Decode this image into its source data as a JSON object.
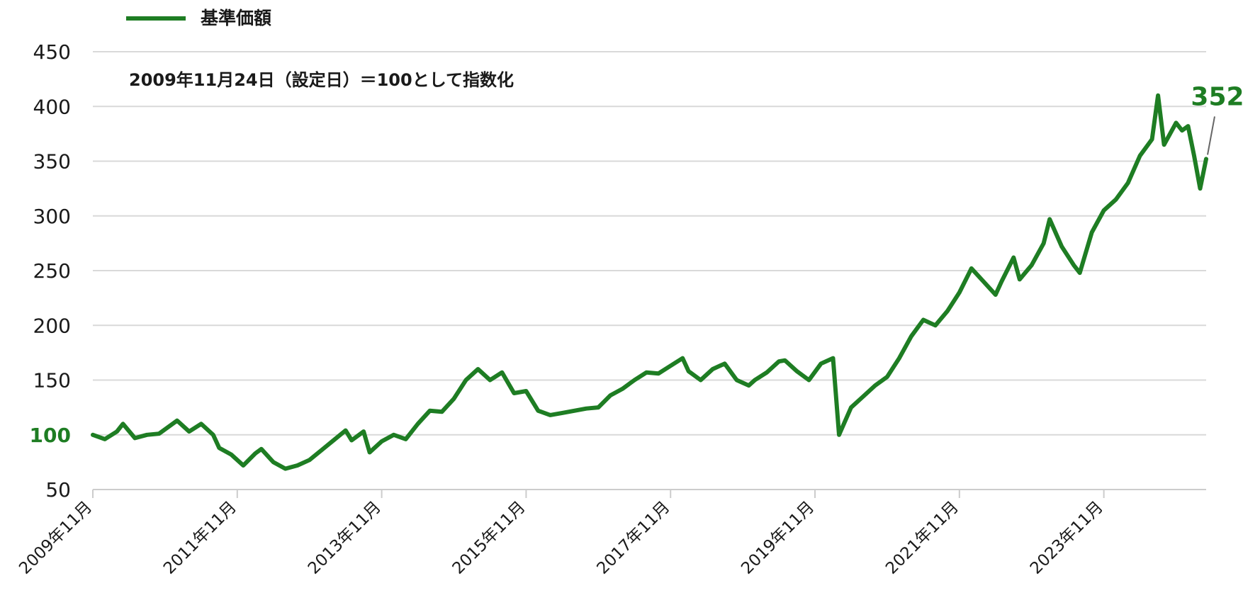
{
  "colors": {
    "series": "#1e7d23",
    "grid": "#d9d9d9",
    "axis": "#cccccc",
    "text": "#1a1a1a",
    "leader": "#666666"
  },
  "legend": {
    "label": "基準価額",
    "placement": "top-left"
  },
  "annotations": {
    "note": "2009年11月24日（設定日）＝100として指数化",
    "end_value_label": "352"
  },
  "chart_data": {
    "type": "line",
    "xlabel": "",
    "ylabel": "",
    "ylim": [
      50,
      450
    ],
    "yticks": [
      50,
      100,
      150,
      200,
      250,
      300,
      350,
      400,
      450
    ],
    "highlight_ytick": 100,
    "grid": true,
    "xlim": [
      "2009-11",
      "2025-04"
    ],
    "xticks": [
      {
        "date": "2009-11",
        "label": "2009年11月"
      },
      {
        "date": "2011-11",
        "label": "2011年11月"
      },
      {
        "date": "2013-11",
        "label": "2013年11月"
      },
      {
        "date": "2015-11",
        "label": "2015年11月"
      },
      {
        "date": "2017-11",
        "label": "2017年11月"
      },
      {
        "date": "2019-11",
        "label": "2019年11月"
      },
      {
        "date": "2021-11",
        "label": "2021年11月"
      },
      {
        "date": "2023-11",
        "label": "2023年11月"
      }
    ],
    "series": [
      {
        "name": "基準価額",
        "points": [
          [
            "2009-11",
            100
          ],
          [
            "2010-01",
            96
          ],
          [
            "2010-03",
            103
          ],
          [
            "2010-04",
            110
          ],
          [
            "2010-06",
            97
          ],
          [
            "2010-08",
            100
          ],
          [
            "2010-10",
            101
          ],
          [
            "2011-01",
            113
          ],
          [
            "2011-03",
            103
          ],
          [
            "2011-05",
            110
          ],
          [
            "2011-07",
            100
          ],
          [
            "2011-08",
            88
          ],
          [
            "2011-10",
            82
          ],
          [
            "2011-12",
            72
          ],
          [
            "2012-02",
            83
          ],
          [
            "2012-03",
            87
          ],
          [
            "2012-05",
            75
          ],
          [
            "2012-07",
            69
          ],
          [
            "2012-09",
            72
          ],
          [
            "2012-11",
            77
          ],
          [
            "2013-01",
            86
          ],
          [
            "2013-03",
            95
          ],
          [
            "2013-05",
            104
          ],
          [
            "2013-06",
            95
          ],
          [
            "2013-08",
            103
          ],
          [
            "2013-09",
            84
          ],
          [
            "2013-11",
            94
          ],
          [
            "2014-01",
            100
          ],
          [
            "2014-03",
            96
          ],
          [
            "2014-05",
            110
          ],
          [
            "2014-07",
            122
          ],
          [
            "2014-09",
            121
          ],
          [
            "2014-11",
            133
          ],
          [
            "2015-01",
            150
          ],
          [
            "2015-03",
            160
          ],
          [
            "2015-05",
            150
          ],
          [
            "2015-07",
            157
          ],
          [
            "2015-09",
            138
          ],
          [
            "2015-11",
            140
          ],
          [
            "2016-01",
            122
          ],
          [
            "2016-03",
            118
          ],
          [
            "2016-05",
            120
          ],
          [
            "2016-07",
            122
          ],
          [
            "2016-09",
            124
          ],
          [
            "2016-11",
            125
          ],
          [
            "2017-01",
            136
          ],
          [
            "2017-03",
            142
          ],
          [
            "2017-05",
            150
          ],
          [
            "2017-07",
            157
          ],
          [
            "2017-09",
            156
          ],
          [
            "2017-11",
            163
          ],
          [
            "2018-01",
            170
          ],
          [
            "2018-02",
            158
          ],
          [
            "2018-04",
            150
          ],
          [
            "2018-06",
            160
          ],
          [
            "2018-08",
            165
          ],
          [
            "2018-10",
            150
          ],
          [
            "2018-12",
            145
          ],
          [
            "2019-01",
            150
          ],
          [
            "2019-03",
            157
          ],
          [
            "2019-05",
            167
          ],
          [
            "2019-06",
            168
          ],
          [
            "2019-08",
            158
          ],
          [
            "2019-10",
            150
          ],
          [
            "2019-12",
            165
          ],
          [
            "2020-02",
            170
          ],
          [
            "2020-03",
            100
          ],
          [
            "2020-05",
            125
          ],
          [
            "2020-07",
            135
          ],
          [
            "2020-09",
            145
          ],
          [
            "2020-11",
            153
          ],
          [
            "2021-01",
            170
          ],
          [
            "2021-03",
            190
          ],
          [
            "2021-05",
            205
          ],
          [
            "2021-07",
            200
          ],
          [
            "2021-09",
            213
          ],
          [
            "2021-11",
            230
          ],
          [
            "2022-01",
            252
          ],
          [
            "2022-03",
            240
          ],
          [
            "2022-05",
            228
          ],
          [
            "2022-06",
            240
          ],
          [
            "2022-08",
            262
          ],
          [
            "2022-09",
            242
          ],
          [
            "2022-11",
            255
          ],
          [
            "2023-01",
            275
          ],
          [
            "2023-02",
            297
          ],
          [
            "2023-04",
            272
          ],
          [
            "2023-06",
            255
          ],
          [
            "2023-07",
            248
          ],
          [
            "2023-09",
            285
          ],
          [
            "2023-11",
            305
          ],
          [
            "2024-01",
            315
          ],
          [
            "2024-03",
            330
          ],
          [
            "2024-05",
            355
          ],
          [
            "2024-07",
            370
          ],
          [
            "2024-08",
            410
          ],
          [
            "2024-09",
            365
          ],
          [
            "2024-11",
            385
          ],
          [
            "2024-12",
            378
          ],
          [
            "2025-01",
            382
          ],
          [
            "2025-02",
            355
          ],
          [
            "2025-03",
            325
          ],
          [
            "2025-04",
            352
          ]
        ]
      }
    ]
  }
}
